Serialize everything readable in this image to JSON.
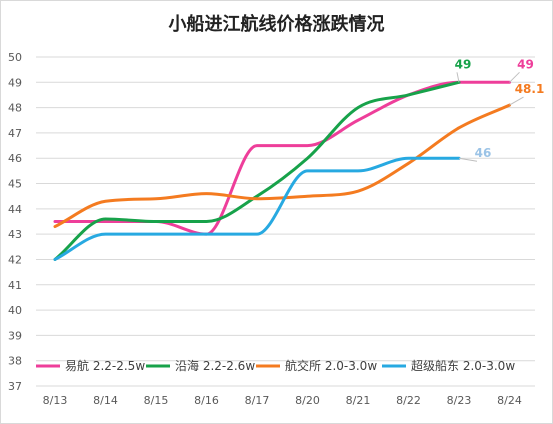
{
  "chart_data": {
    "type": "line",
    "title": "小船进江航线价格涨跌情况",
    "xlabel": "",
    "ylabel": "",
    "categories": [
      "8/13",
      "8/14",
      "8/15",
      "8/16",
      "8/17",
      "8/20",
      "8/21",
      "8/22",
      "8/23",
      "8/24"
    ],
    "ylim": [
      37,
      50
    ],
    "yticks": [
      37,
      38,
      39,
      40,
      41,
      42,
      43,
      44,
      45,
      46,
      47,
      48,
      49,
      50
    ],
    "grid": true,
    "legend_position": "bottom-inside",
    "series": [
      {
        "name": "易航 2.2-2.5w",
        "color": "#EE3E9A",
        "values": [
          43.5,
          43.5,
          43.5,
          43.0,
          46.5,
          46.5,
          47.5,
          48.5,
          49.0,
          49.0
        ],
        "end_label": "49"
      },
      {
        "name": "沿海 2.2-2.6w",
        "color": "#17A24A",
        "values": [
          42.0,
          43.6,
          43.5,
          43.5,
          44.5,
          46.0,
          48.0,
          48.5,
          49.0,
          null
        ],
        "end_label": "49"
      },
      {
        "name": "航交所 2.0-3.0w",
        "color": "#F47B20",
        "values": [
          43.3,
          44.3,
          44.4,
          44.6,
          44.4,
          44.5,
          44.7,
          45.8,
          47.2,
          48.1
        ],
        "end_label": "48.1"
      },
      {
        "name": "超级船东 2.0-3.0w",
        "color": "#27A9E1",
        "values": [
          42.0,
          43.0,
          43.0,
          43.0,
          43.0,
          45.5,
          45.5,
          46.0,
          46.0,
          null
        ],
        "end_label": "46"
      }
    ],
    "end_label_colors": [
      "#EE3E9A",
      "#17A24A",
      "#F47B20",
      "#9BC3E6"
    ]
  }
}
